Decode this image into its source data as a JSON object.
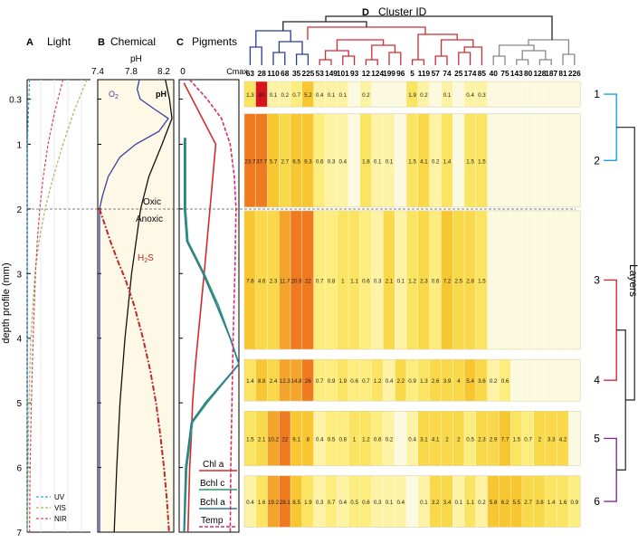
{
  "chart_data": {
    "type": "heatmap",
    "panels": {
      "A": {
        "letter": "A",
        "title": "Light"
      },
      "B": {
        "letter": "B",
        "title": "Chemical"
      },
      "C": {
        "letter": "C",
        "title": "Pigments"
      },
      "D": {
        "letter": "D",
        "title": "Cluster ID"
      }
    },
    "ylabel": "depth profile (mm)",
    "depth_range": [
      0,
      7
    ],
    "depth_ticks": [
      "0.3",
      "1",
      "2",
      "3",
      "4",
      "5",
      "6",
      "7"
    ],
    "ph_axis": {
      "label": "pH",
      "ticks": [
        "7.4",
        "7.8",
        "8.2"
      ]
    },
    "pigment_axis": {
      "min_label": "0",
      "max_label": "Cmax"
    },
    "light_series": [
      {
        "name": "UV",
        "color": "#2aa6d8",
        "depth": [
          0,
          1,
          2,
          3,
          4,
          5,
          6,
          7
        ],
        "value": [
          0.04,
          0.005,
          0.002,
          0.001,
          0.001,
          0.001,
          0.001,
          0.001
        ]
      },
      {
        "name": "VIS",
        "color": "#a6b85a",
        "depth": [
          0,
          0.5,
          1,
          1.5,
          2,
          2.5,
          3,
          4,
          5,
          6,
          7
        ],
        "value": [
          1,
          0.78,
          0.6,
          0.44,
          0.3,
          0.2,
          0.13,
          0.06,
          0.03,
          0.015,
          0.008
        ]
      },
      {
        "name": "NIR",
        "color": "#d8434f",
        "depth": [
          0,
          0.5,
          1,
          1.5,
          2,
          2.5,
          3,
          4,
          5,
          6,
          7
        ],
        "value": [
          0.6,
          0.46,
          0.35,
          0.27,
          0.21,
          0.17,
          0.14,
          0.1,
          0.07,
          0.05,
          0.04
        ]
      }
    ],
    "chemical_series": [
      {
        "name": "O2",
        "label": "O2",
        "color": "#3a3ea8",
        "depth": [
          0,
          0.15,
          0.3,
          0.45,
          0.6,
          0.8,
          1.0,
          1.2,
          1.5,
          1.8,
          2.0,
          7
        ],
        "value": [
          0.55,
          0.52,
          0.56,
          0.75,
          0.95,
          0.82,
          0.5,
          0.28,
          0.12,
          0.04,
          0,
          0
        ]
      },
      {
        "name": "pH",
        "label": "pH",
        "color": "#111111",
        "depth": [
          0,
          0.3,
          0.6,
          1.0,
          1.5,
          2.0,
          3.0,
          4.0,
          5.0,
          6.0,
          7.0
        ],
        "value": [
          8.22,
          8.27,
          8.3,
          8.18,
          8.02,
          7.92,
          7.81,
          7.73,
          7.67,
          7.63,
          7.6
        ]
      },
      {
        "name": "H2S",
        "label": "H2S",
        "color": "#c0282a",
        "depth": [
          2.0,
          2.2,
          2.5,
          2.8,
          3.1,
          3.5,
          4.0,
          4.5,
          5.0,
          5.5,
          6.0,
          6.5,
          7.0
        ],
        "value": [
          0,
          0.06,
          0.15,
          0.25,
          0.36,
          0.48,
          0.6,
          0.7,
          0.78,
          0.84,
          0.89,
          0.93,
          0.96
        ]
      }
    ],
    "zone_labels": [
      "Oxic",
      "Anoxic"
    ],
    "pigment_series": [
      {
        "name": "Chl a",
        "label": "Chl a",
        "color": "#d02c2c",
        "dash": false,
        "depth": [
          0.05,
          1.0,
          2.0,
          3.0,
          4.4,
          5.0,
          5.5,
          6.0,
          7.0
        ],
        "value": [
          0.05,
          0.6,
          0.5,
          0.4,
          0.25,
          0.2,
          0.18,
          0.15,
          0.12
        ]
      },
      {
        "name": "Bchl c",
        "label": "Bchl c",
        "color": "#2f9a6a",
        "dash": false,
        "depth": [
          0.9,
          2.0,
          2.5,
          3.0,
          3.5,
          4.0,
          4.4,
          5.0,
          5.3,
          6.0,
          7.0
        ],
        "value": [
          0.08,
          0.08,
          0.12,
          0.4,
          0.65,
          0.85,
          1.0,
          0.45,
          0.2,
          0.1,
          0.06
        ]
      },
      {
        "name": "Bchl a",
        "label": "Bchl a",
        "color": "#2f7a9a",
        "dash": false,
        "depth": [
          0.9,
          2.0,
          2.5,
          3.0,
          3.5,
          4.0,
          4.4,
          5.0,
          5.3,
          6.0,
          7.0
        ],
        "value": [
          0.06,
          0.06,
          0.1,
          0.38,
          0.62,
          0.85,
          1.0,
          0.42,
          0.18,
          0.08,
          0.05
        ]
      },
      {
        "name": "Temp",
        "label": "Temp",
        "color": "#d0306a",
        "dash": true,
        "depth": [
          0,
          0.3,
          0.6,
          1.0,
          1.5,
          2.0,
          3.0,
          4.0,
          5.0,
          6.0,
          7.0
        ],
        "value": [
          0.15,
          0.45,
          0.7,
          0.85,
          0.92,
          0.95,
          0.93,
          0.9,
          0.88,
          0.86,
          0.85
        ]
      }
    ],
    "legend_labels": [
      "Chl a",
      "Bchl c",
      "Bchl a",
      "Temp"
    ],
    "light_legend": [
      "UV",
      "VIS",
      "NIR"
    ],
    "cluster_ids": [
      "63",
      "28",
      "110",
      "68",
      "35",
      "225",
      "53",
      "149",
      "101",
      "93",
      "12",
      "124",
      "199",
      "96",
      "5",
      "119",
      "57",
      "74",
      "25",
      "174",
      "85",
      "40",
      "75",
      "143",
      "80",
      "128",
      "187",
      "81",
      "226"
    ],
    "cluster_colors": [
      "#2b3a9a",
      "#2b3a9a",
      "#2b3a9a",
      "#2b3a9a",
      "#2b3a9a",
      "#2b3a9a",
      "#d22b30",
      "#d22b30",
      "#d22b30",
      "#d22b30",
      "#d22b30",
      "#d22b30",
      "#d22b30",
      "#d22b30",
      "#d22b30",
      "#d22b30",
      "#d22b30",
      "#d22b30",
      "#d22b30",
      "#d22b30",
      "#d22b30",
      "#888888",
      "#888888",
      "#888888",
      "#888888",
      "#888888",
      "#888888",
      "#888888",
      "#888888"
    ],
    "layers": [
      {
        "name": "1",
        "depth": [
          0,
          0.45
        ],
        "values": [
          "1.3",
          "80",
          "0.1",
          "0.2",
          "0.7",
          "5.2",
          "0.4",
          "0.1",
          "0.1",
          "",
          "0.2",
          "",
          "",
          "",
          "1.9",
          "0.2",
          "",
          "0.1",
          "",
          "0.4",
          "0.3",
          "",
          "",
          "",
          "",
          "",
          "",
          "",
          ""
        ]
      },
      {
        "name": "2",
        "depth": [
          0.5,
          2.0
        ],
        "values": [
          "23.7",
          "37.7",
          "5.7",
          "2.7",
          "6.5",
          "9.3",
          "0.6",
          "0.3",
          "0.4",
          "",
          "1.8",
          "0.1",
          "0.1",
          "",
          "1.5",
          "4.1",
          "0.2",
          "1.4",
          "",
          "1.5",
          "1.5",
          "",
          "",
          "",
          "",
          "",
          "",
          "",
          ""
        ]
      },
      {
        "name": "3",
        "depth": [
          2.0,
          4.2
        ],
        "values": [
          "7.6",
          "4.6",
          "2.3",
          "11.7",
          "20.9",
          "22",
          "0.7",
          "0.8",
          "1",
          "1.1",
          "0.6",
          "0.3",
          "2.1",
          "0.1",
          "1.2",
          "2.3",
          "0.6",
          "7.2",
          "2.5",
          "2.8",
          "1.5",
          "",
          "",
          "",
          "",
          "",
          "",
          "",
          ""
        ]
      },
      {
        "name": "4",
        "depth": [
          4.3,
          5.0
        ],
        "values": [
          "1.4",
          "8.8",
          "2.4",
          "12.3",
          "14.8",
          "26",
          "0.7",
          "0.9",
          "1.9",
          "0.6",
          "0.7",
          "1.2",
          "0.4",
          "2.2",
          "0.9",
          "1.3",
          "2.6",
          "3.9",
          "4",
          "5.4",
          "3.6",
          "0.2",
          "0.6",
          "",
          "",
          "",
          "",
          "",
          ""
        ]
      },
      {
        "name": "5",
        "depth": [
          5.1,
          6.0
        ],
        "values": [
          "1.5",
          "2.1",
          "10.2",
          "22",
          "9.1",
          "8",
          "0.4",
          "0.5",
          "0.8",
          "1",
          "1.2",
          "0.6",
          "0.2",
          "",
          "0.4",
          "3.1",
          "4.1",
          "2",
          "2",
          "0.5",
          "2.3",
          "2.9",
          "7.7",
          "1.5",
          "0.7",
          "2",
          "3.3",
          "4.2",
          ""
        ]
      },
      {
        "name": "6",
        "depth": [
          6.1,
          6.95
        ],
        "values": [
          "0.4",
          "1.6",
          "19.2",
          "28.1",
          "8.5",
          "1.9",
          "0.3",
          "0.7",
          "0.4",
          "0.5",
          "0.6",
          "0.3",
          "0.1",
          "0.4",
          "",
          "0.1",
          "3.2",
          "3.4",
          "0.1",
          "1.1",
          "0.2",
          "5.8",
          "6.2",
          "5.5",
          "2.7",
          "3.8",
          "1.4",
          "1.6",
          "0.9"
        ]
      }
    ],
    "layers_label": "Layers"
  }
}
